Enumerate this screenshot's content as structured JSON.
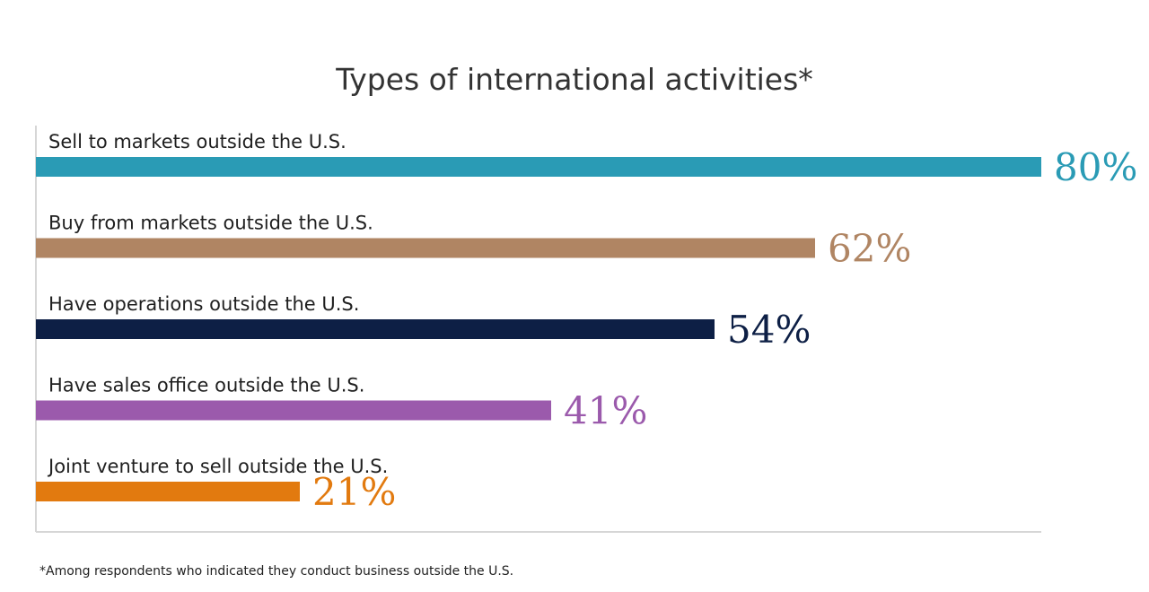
{
  "chart_data": {
    "type": "bar",
    "orientation": "horizontal",
    "title": "Types of international activities*",
    "categories": [
      "Sell to markets outside the U.S.",
      "Buy from markets outside the U.S.",
      "Have operations outside the U.S.",
      "Have sales office outside the U.S.",
      "Joint venture to sell outside the U.S."
    ],
    "values": [
      80,
      62,
      54,
      41,
      21
    ],
    "value_labels": [
      "80%",
      "62%",
      "54%",
      "41%",
      "21%"
    ],
    "colors": [
      "#2a9bb5",
      "#b08563",
      "#0d1f45",
      "#9b5aac",
      "#e27a0f"
    ],
    "xlim": [
      0,
      80
    ],
    "grid": false,
    "footnote": "*Among respondents who indicated they conduct business outside the U.S."
  }
}
